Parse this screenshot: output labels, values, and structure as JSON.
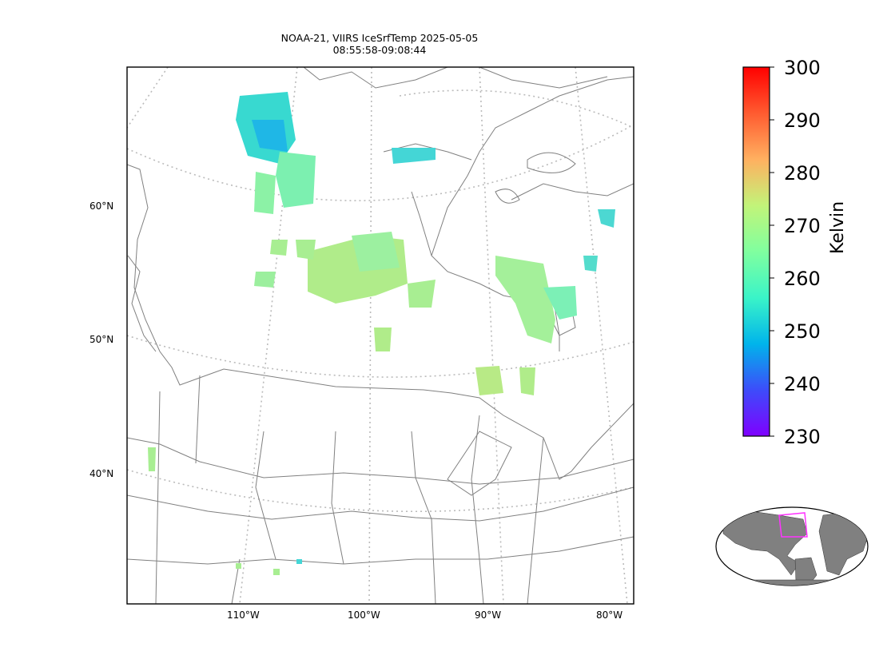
{
  "title": {
    "line1": "NOAA-21, VIIRS IceSrfTemp 2025-05-05",
    "line2": "08:55:58-09:08:44"
  },
  "map": {
    "lat_labels": [
      "60°N",
      "50°N",
      "40°N"
    ],
    "lon_labels": [
      "110°W",
      "100°W",
      "90°W",
      "80°W"
    ],
    "lat_ticks": [
      60,
      50,
      40
    ],
    "lon_ticks": [
      -110,
      -100,
      -90,
      -80
    ]
  },
  "colorbar": {
    "label": "Kelvin",
    "min": 230,
    "max": 300,
    "ticks": [
      "300",
      "290",
      "280",
      "270",
      "260",
      "250",
      "240",
      "230"
    ],
    "colormap": [
      "#7f00ff",
      "#3d4cfa",
      "#00b4eb",
      "#3af4c8",
      "#80ff9f",
      "#c2f479",
      "#ffb060",
      "#ff5b30",
      "#ff0000"
    ]
  },
  "inset": {
    "highlight_color": "#ff33ff",
    "land_color": "#808080"
  },
  "colors": {
    "coastline": "#808080",
    "gridline": "#bbbbbb"
  }
}
